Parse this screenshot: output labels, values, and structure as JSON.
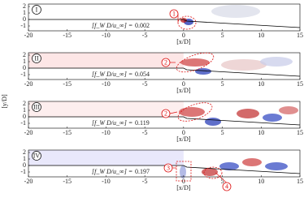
{
  "x_axis": {
    "label": "[x/D]",
    "ticks": [
      -20,
      -15,
      -10,
      -5,
      0,
      5,
      10,
      15
    ]
  },
  "y_axis": {
    "label": "[y/D]",
    "ticks": [
      -1,
      0,
      1,
      2
    ]
  },
  "panels": [
    {
      "label": "I",
      "frequency_label": "[f_W D/u_∞] =",
      "frequency": 0.002,
      "annotations": [
        "1"
      ]
    },
    {
      "label": "II",
      "frequency_label": "[f_W D/u_∞] =",
      "frequency": 0.054,
      "annotations": [
        "2"
      ]
    },
    {
      "label": "III",
      "frequency_label": "[f_W D/u_∞] =",
      "frequency": 0.119,
      "annotations": [
        "2"
      ]
    },
    {
      "label": "IV",
      "frequency_label": "[f_W D/u_∞] =",
      "frequency": 0.197,
      "annotations": [
        "3",
        "4"
      ]
    }
  ]
}
